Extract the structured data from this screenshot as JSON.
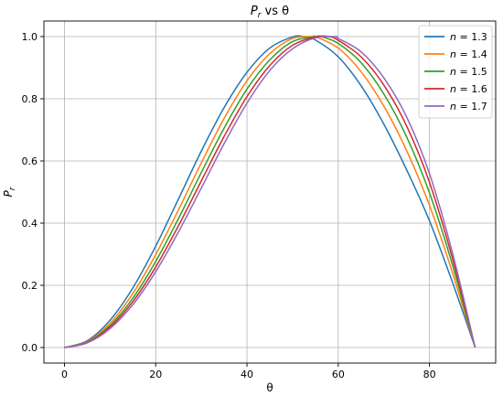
{
  "chart_data": {
    "type": "line",
    "title": "P_r vs θ",
    "title_parts": {
      "main": "P",
      "sub": "r",
      "rest": " vs θ"
    },
    "xlabel": "θ",
    "ylabel": "P_r",
    "ylabel_parts": {
      "main": "P",
      "sub": "r"
    },
    "xlim": [
      -4.5,
      94.5
    ],
    "ylim": [
      -0.05,
      1.05
    ],
    "xticks": [
      0,
      20,
      40,
      60,
      80
    ],
    "xtick_labels": [
      "0",
      "20",
      "40",
      "60",
      "80"
    ],
    "yticks": [
      0.0,
      0.2,
      0.4,
      0.6,
      0.8,
      1.0
    ],
    "ytick_labels": [
      "0.0",
      "0.2",
      "0.4",
      "0.6",
      "0.8",
      "1.0"
    ],
    "grid": true,
    "legend_position": "top-right",
    "x": [
      0,
      5,
      10,
      15,
      20,
      25,
      30,
      35,
      40,
      45,
      50,
      55,
      60,
      65,
      70,
      75,
      80,
      85,
      90
    ],
    "series": [
      {
        "legend": {
          "italic": "n",
          "rest": " = 1.3"
        },
        "color": "#1f77b4",
        "peak_x": 52.4,
        "values": [
          0,
          0.022,
          0.088,
          0.192,
          0.326,
          0.478,
          0.632,
          0.772,
          0.885,
          0.963,
          0.999,
          0.989,
          0.935,
          0.842,
          0.718,
          0.571,
          0.407,
          0.211,
          0
        ]
      },
      {
        "legend": {
          "italic": "n",
          "rest": " = 1.4"
        },
        "color": "#ff7f0e",
        "peak_x": 54.5,
        "values": [
          0,
          0.019,
          0.078,
          0.174,
          0.299,
          0.443,
          0.594,
          0.737,
          0.858,
          0.945,
          0.994,
          1.0,
          0.963,
          0.887,
          0.776,
          0.633,
          0.457,
          0.242,
          0
        ]
      },
      {
        "legend": {
          "italic": "n",
          "rest": " = 1.5"
        },
        "color": "#2ca02c",
        "peak_x": 56.3,
        "values": [
          0,
          0.017,
          0.071,
          0.159,
          0.277,
          0.415,
          0.563,
          0.706,
          0.831,
          0.925,
          0.984,
          1.0,
          0.978,
          0.916,
          0.815,
          0.677,
          0.497,
          0.267,
          0
        ]
      },
      {
        "legend": {
          "italic": "n",
          "rest": " = 1.6"
        },
        "color": "#d62728",
        "peak_x": 58.0,
        "values": [
          0,
          0.016,
          0.066,
          0.148,
          0.259,
          0.392,
          0.536,
          0.679,
          0.807,
          0.907,
          0.972,
          0.999,
          0.988,
          0.935,
          0.844,
          0.712,
          0.531,
          0.288,
          0
        ]
      },
      {
        "legend": {
          "italic": "n",
          "rest": " = 1.7"
        },
        "color": "#9467bd",
        "peak_x": 59.5,
        "values": [
          0,
          0.015,
          0.061,
          0.138,
          0.244,
          0.372,
          0.513,
          0.656,
          0.786,
          0.891,
          0.961,
          0.996,
          0.994,
          0.951,
          0.867,
          0.741,
          0.559,
          0.306,
          0
        ]
      }
    ]
  }
}
